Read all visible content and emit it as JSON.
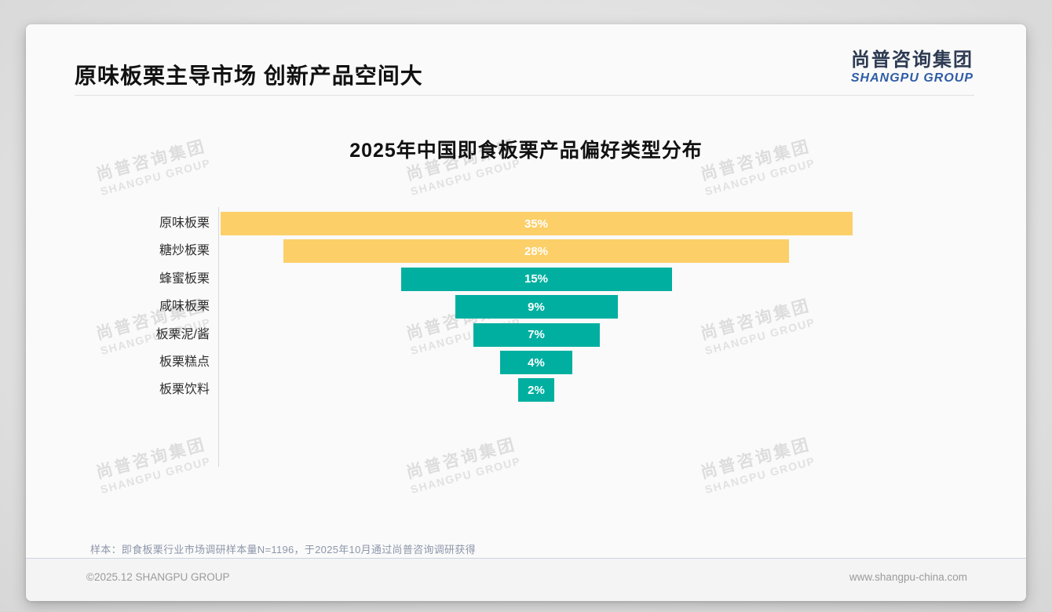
{
  "header": {
    "title": "原味板栗主导市场 创新产品空间大",
    "logo": {
      "cn": "尚普咨询集团",
      "en": "SHANGPU GROUP"
    }
  },
  "watermark": {
    "cn": "尚普咨询集团",
    "en": "SHANGPU GROUP"
  },
  "footnote": "样本：即食板栗行业市场调研样本量N=1196，于2025年10月通过尚普咨询调研获得",
  "page": {
    "copyright": "©2025.12 SHANGPU GROUP",
    "website": "www.shangpu-china.com"
  },
  "colors": {
    "yellow": "#FCCF68",
    "teal": "#00AFA0",
    "logo_cn": "#2d3a52",
    "logo_en": "#2e5ca6"
  },
  "chart_data": {
    "type": "bar",
    "variant": "horizontal-centered-funnel",
    "title": "2025年中国即食板栗产品偏好类型分布",
    "categories": [
      "原味板栗",
      "糖炒板栗",
      "蜂蜜板栗",
      "咸味板栗",
      "板栗泥/酱",
      "板栗糕点",
      "板栗饮料"
    ],
    "values": [
      35,
      28,
      15,
      9,
      7,
      4,
      2
    ],
    "unit": "%",
    "data_labels": [
      "35%",
      "28%",
      "15%",
      "9%",
      "7%",
      "4%",
      "2%"
    ],
    "bar_colors": [
      "#FCCF68",
      "#FCCF68",
      "#00AFA0",
      "#00AFA0",
      "#00AFA0",
      "#00AFA0",
      "#00AFA0"
    ],
    "xlim": [
      0,
      35
    ],
    "grid": false,
    "legend": false,
    "bars_centered": true
  }
}
